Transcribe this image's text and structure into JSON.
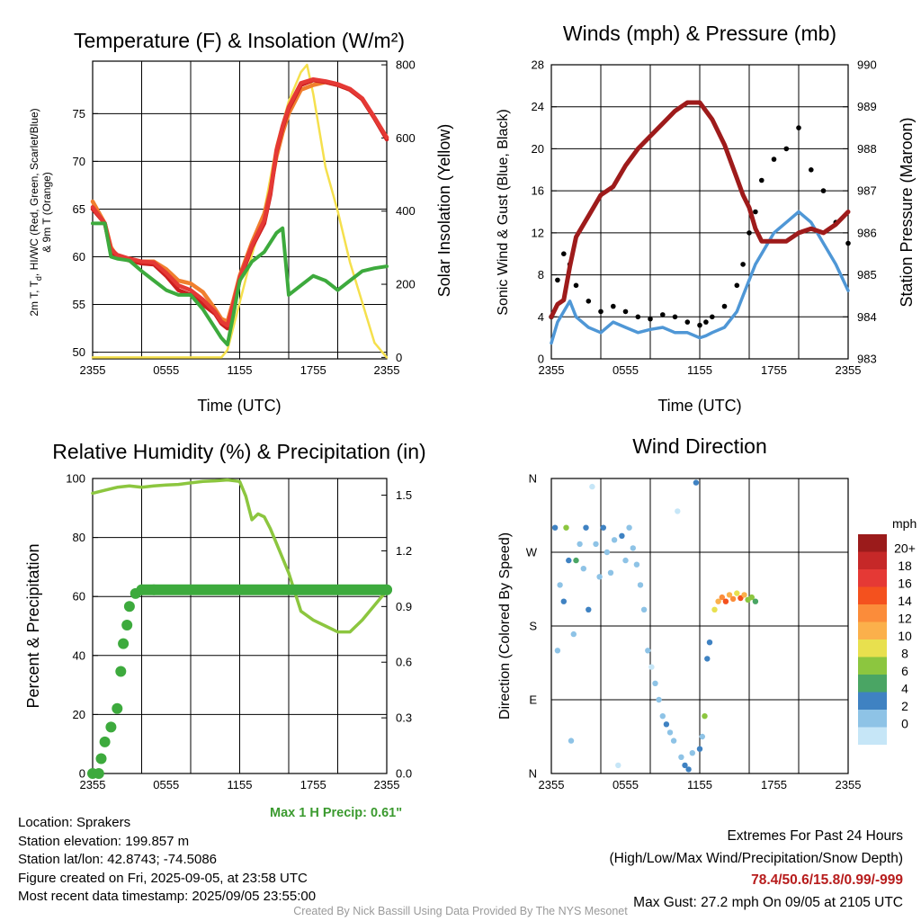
{
  "chart_data": [
    {
      "type": "line",
      "title": "Temperature (F) & Insolation (W/m²)",
      "xlabel": "Time (UTC)",
      "ylabel": "2m T, Td, HI/WC (Red, Green, Scarlet/Blue) & 9m T (Orange)",
      "ylabel_line1": "2m T, T",
      "ylabel_sub": "d",
      "ylabel_line1b": ", HI/WC (Red, Green, Scarlet/Blue)",
      "ylabel_line2": "& 9m T (Orange)",
      "y2label": "Solar Insolation (Yellow)",
      "x_ticks": [
        "2355",
        "0555",
        "1155",
        "1755",
        "2355"
      ],
      "ylim": [
        49.3,
        80.5
      ],
      "y_ticks": [
        50,
        55,
        60,
        65,
        70,
        75
      ],
      "y2lim": [
        -4,
        810
      ],
      "y2_ticks": [
        0,
        200,
        400,
        600,
        800
      ],
      "x": [
        0,
        1,
        1.5,
        2,
        3,
        4,
        5,
        6,
        7,
        8,
        9,
        10,
        10.5,
        11,
        11.5,
        12,
        13,
        14,
        14.5,
        15,
        15.5,
        16,
        17,
        18,
        19,
        20,
        21,
        22,
        23,
        24
      ],
      "series": [
        {
          "role": "9m T",
          "color": "#f07f2e",
          "values": [
            65.8,
            63.5,
            61,
            60,
            59.8,
            59.5,
            59.5,
            58.7,
            57.5,
            57.2,
            56.3,
            54.5,
            53.5,
            53.2,
            55.5,
            58,
            61.5,
            64.5,
            67,
            70.5,
            73,
            75,
            77.5,
            78,
            78.3,
            78,
            77.5,
            76.5,
            74.5,
            72.5
          ]
        },
        {
          "role": "2m T",
          "color": "#cc1f1f",
          "values": [
            65,
            63.5,
            60.5,
            60,
            59.6,
            59.3,
            59.2,
            58,
            56.5,
            56,
            55,
            54,
            53,
            52.5,
            55,
            57.5,
            61,
            63.5,
            66.5,
            71,
            73.5,
            75.5,
            78,
            78.5,
            78.3,
            78,
            77.5,
            76.5,
            74.5,
            72.3
          ]
        },
        {
          "role": "HI/WC",
          "color": "#e53935",
          "values": [
            65.2,
            63.5,
            60.8,
            60.2,
            59.8,
            59.5,
            59.4,
            58.3,
            57,
            56.5,
            55.5,
            54.2,
            53.2,
            52.8,
            55.2,
            57.8,
            61.2,
            63.8,
            66.8,
            71.2,
            73.7,
            75.7,
            78.2,
            78.6,
            78.4,
            78.1,
            77.6,
            76.6,
            74.6,
            72.5
          ]
        },
        {
          "role": "2m Td",
          "color": "#3daa3d",
          "values": [
            63.5,
            63.5,
            60,
            59.8,
            59.6,
            58.5,
            57.5,
            56.5,
            56,
            56,
            54.5,
            52.5,
            51.5,
            50.8,
            54,
            57.5,
            59.5,
            60.5,
            61.5,
            62.5,
            63,
            56,
            57,
            58,
            57.5,
            56.5,
            57.5,
            58.5,
            58.8,
            59
          ]
        },
        {
          "role": "Solar Insolation",
          "color": "#f5e04d",
          "axis": "right",
          "x": [
            0,
            6,
            10.5,
            11,
            12,
            13,
            14,
            15,
            16,
            17,
            17.5,
            18,
            19,
            20,
            21,
            22,
            23,
            24
          ],
          "values": [
            0,
            0,
            0,
            20,
            150,
            280,
            400,
            580,
            700,
            780,
            800,
            720,
            520,
            400,
            260,
            150,
            40,
            0
          ]
        }
      ]
    },
    {
      "type": "line",
      "title": "Winds (mph) & Pressure (mb)",
      "xlabel": "Time (UTC)",
      "ylabel": "Sonic Wind & Gust (Blue, Black)",
      "y2label": "Station Pressure (Maroon)",
      "x_ticks": [
        "2355",
        "0555",
        "1155",
        "1755",
        "2355"
      ],
      "ylim": [
        0,
        28
      ],
      "y_ticks": [
        0,
        4,
        8,
        12,
        16,
        20,
        24,
        28
      ],
      "y2lim": [
        983,
        990
      ],
      "y2_ticks": [
        983,
        984,
        985,
        986,
        987,
        988,
        989,
        990
      ],
      "x": [
        0,
        0.5,
        1,
        1.5,
        2,
        3,
        4,
        5,
        6,
        7,
        8,
        9,
        10,
        11,
        12,
        12.5,
        13,
        14,
        15,
        15.5,
        16,
        16.5,
        17,
        18,
        19,
        20,
        21,
        22,
        23,
        24
      ],
      "series": [
        {
          "role": "Sonic Wind",
          "color": "#4f97d6",
          "values": [
            1.5,
            3.5,
            4.5,
            5.5,
            4,
            3,
            2.5,
            3.5,
            3,
            2.5,
            2.8,
            3,
            2.5,
            2.5,
            2,
            2.2,
            2.5,
            3,
            4.5,
            6,
            7.5,
            9,
            10,
            12,
            13,
            14,
            13,
            11,
            9,
            6.5
          ]
        },
        {
          "role": "Sonic Gust",
          "color": "#000000",
          "values": [
            4,
            7.5,
            10,
            9,
            7,
            5.5,
            4.5,
            5,
            4.5,
            4,
            3.8,
            4.2,
            4,
            3.5,
            3.2,
            3.5,
            4,
            5,
            7,
            9,
            12,
            14,
            17,
            19,
            20,
            22,
            18,
            16,
            13,
            11
          ]
        },
        {
          "role": "Station Pressure",
          "color": "#9e1b1b",
          "axis": "right",
          "values": [
            984,
            984.3,
            984.4,
            985.2,
            985.9,
            986.4,
            986.9,
            987.1,
            987.6,
            988,
            988.3,
            988.6,
            988.9,
            989.1,
            989.1,
            988.9,
            988.7,
            988.1,
            987.3,
            986.9,
            986.6,
            986.1,
            985.8,
            985.8,
            985.8,
            986,
            986.1,
            986.0,
            986.2,
            986.5
          ]
        }
      ]
    },
    {
      "type": "line",
      "title": "Relative Humidity (%) & Precipitation (in)",
      "ylabel": "Percent & Precipitation",
      "x_ticks": [
        "2355",
        "0555",
        "1155",
        "1755",
        "2355"
      ],
      "ylim": [
        0,
        100
      ],
      "y_ticks": [
        0,
        20,
        40,
        60,
        80,
        100
      ],
      "y2lim": [
        0,
        1.59
      ],
      "y2_ticks": [
        "0.0",
        "0.3",
        "0.6",
        "0.9",
        "1.2",
        "1.5"
      ],
      "x": [
        0,
        1,
        2,
        3,
        4,
        5,
        6,
        7,
        8,
        9,
        10,
        11,
        12,
        12.5,
        13,
        13.5,
        14,
        14.5,
        15,
        16,
        17,
        18,
        19,
        20,
        21,
        22,
        23,
        24
      ],
      "series": [
        {
          "role": "Relative Humidity",
          "color": "#8cc63f",
          "values": [
            95,
            96,
            97,
            97.5,
            97,
            97.5,
            97.8,
            98,
            98.5,
            99,
            99.2,
            99.5,
            99,
            94,
            86,
            88,
            87,
            83,
            78,
            68,
            55,
            52,
            50,
            48,
            48,
            52,
            57,
            62
          ]
        },
        {
          "role": "Precipitation",
          "color": "#3daa3d",
          "axis": "right",
          "x": [
            0,
            0.5,
            0.7,
            1,
            1.5,
            2,
            2.3,
            2.5,
            2.8,
            3,
            3.5,
            4,
            5,
            24
          ],
          "values": [
            0,
            0,
            0.08,
            0.17,
            0.25,
            0.35,
            0.55,
            0.7,
            0.8,
            0.9,
            0.97,
            0.99,
            0.99,
            0.99
          ]
        }
      ]
    },
    {
      "type": "scatter",
      "title": "Wind Direction",
      "ylabel": "Direction (Colored By Speed)",
      "x_ticks": [
        "2355",
        "0555",
        "1155",
        "1755",
        "2355"
      ],
      "y_ticks": [
        "N",
        "E",
        "S",
        "W",
        "N"
      ],
      "ylim": [
        0,
        360
      ],
      "colorbar_title": "mph",
      "colorbar_labels": [
        "20+",
        "18",
        "16",
        "14",
        "12",
        "10",
        "8",
        "6",
        "4",
        "2",
        "0"
      ],
      "colorbar_colors": [
        "#9b1b1b",
        "#c62828",
        "#e53935",
        "#f4511e",
        "#fb8c3a",
        "#fbb04b",
        "#e8e04e",
        "#8cc63f",
        "#4aa564",
        "#3f82c2",
        "#8ec3e6",
        "#c6e6f7"
      ],
      "points": [
        {
          "x": 0.3,
          "dir": 300,
          "speed": 4
        },
        {
          "x": 0.5,
          "dir": 150,
          "speed": 3
        },
        {
          "x": 0.7,
          "dir": 230,
          "speed": 2
        },
        {
          "x": 1.0,
          "dir": 210,
          "speed": 4
        },
        {
          "x": 1.2,
          "dir": 300,
          "speed": 9
        },
        {
          "x": 1.4,
          "dir": 260,
          "speed": 5
        },
        {
          "x": 1.6,
          "dir": 40,
          "speed": 3
        },
        {
          "x": 1.8,
          "dir": 170,
          "speed": 2
        },
        {
          "x": 2.0,
          "dir": 260,
          "speed": 7
        },
        {
          "x": 2.3,
          "dir": 280,
          "speed": 3
        },
        {
          "x": 2.6,
          "dir": 250,
          "speed": 2
        },
        {
          "x": 2.8,
          "dir": 300,
          "speed": 5
        },
        {
          "x": 3.0,
          "dir": 200,
          "speed": 4
        },
        {
          "x": 3.3,
          "dir": 350,
          "speed": 1
        },
        {
          "x": 3.6,
          "dir": 280,
          "speed": 2
        },
        {
          "x": 3.9,
          "dir": 240,
          "speed": 3
        },
        {
          "x": 4.2,
          "dir": 300,
          "speed": 4
        },
        {
          "x": 4.5,
          "dir": 270,
          "speed": 3
        },
        {
          "x": 4.8,
          "dir": 245,
          "speed": 2
        },
        {
          "x": 5.1,
          "dir": 285,
          "speed": 3
        },
        {
          "x": 5.4,
          "dir": 10,
          "speed": 1
        },
        {
          "x": 5.7,
          "dir": 290,
          "speed": 4
        },
        {
          "x": 6.0,
          "dir": 260,
          "speed": 3
        },
        {
          "x": 6.3,
          "dir": 300,
          "speed": 2
        },
        {
          "x": 6.6,
          "dir": 275,
          "speed": 3
        },
        {
          "x": 6.9,
          "dir": 255,
          "speed": 2
        },
        {
          "x": 7.2,
          "dir": 230,
          "speed": 3
        },
        {
          "x": 7.5,
          "dir": 200,
          "speed": 2
        },
        {
          "x": 7.8,
          "dir": 150,
          "speed": 3
        },
        {
          "x": 8.1,
          "dir": 130,
          "speed": 1
        },
        {
          "x": 8.4,
          "dir": 110,
          "speed": 2
        },
        {
          "x": 8.7,
          "dir": 90,
          "speed": 3
        },
        {
          "x": 9.0,
          "dir": 70,
          "speed": 2
        },
        {
          "x": 9.3,
          "dir": 60,
          "speed": 4
        },
        {
          "x": 9.6,
          "dir": 50,
          "speed": 3
        },
        {
          "x": 9.9,
          "dir": 40,
          "speed": 2
        },
        {
          "x": 10.2,
          "dir": 320,
          "speed": 1
        },
        {
          "x": 10.5,
          "dir": 20,
          "speed": 3
        },
        {
          "x": 10.8,
          "dir": 10,
          "speed": 4
        },
        {
          "x": 11.1,
          "dir": 5,
          "speed": 4
        },
        {
          "x": 11.4,
          "dir": 25,
          "speed": 3
        },
        {
          "x": 11.7,
          "dir": 355,
          "speed": 4
        },
        {
          "x": 12.0,
          "dir": 30,
          "speed": 5
        },
        {
          "x": 12.2,
          "dir": 45,
          "speed": 3
        },
        {
          "x": 12.4,
          "dir": 70,
          "speed": 8
        },
        {
          "x": 12.6,
          "dir": 140,
          "speed": 4
        },
        {
          "x": 12.8,
          "dir": 160,
          "speed": 5
        },
        {
          "x": 13.2,
          "dir": 200,
          "speed": 10
        },
        {
          "x": 13.5,
          "dir": 210,
          "speed": 12
        },
        {
          "x": 13.8,
          "dir": 215,
          "speed": 14
        },
        {
          "x": 14.1,
          "dir": 210,
          "speed": 16
        },
        {
          "x": 14.4,
          "dir": 218,
          "speed": 12
        },
        {
          "x": 14.7,
          "dir": 213,
          "speed": 15
        },
        {
          "x": 15.0,
          "dir": 220,
          "speed": 11
        },
        {
          "x": 15.3,
          "dir": 214,
          "speed": 17
        },
        {
          "x": 15.6,
          "dir": 218,
          "speed": 13
        },
        {
          "x": 15.9,
          "dir": 212,
          "speed": 9
        },
        {
          "x": 16.2,
          "dir": 215,
          "speed": 8
        },
        {
          "x": 16.5,
          "dir": 210,
          "speed": 6
        }
      ]
    }
  ],
  "info": {
    "location": "Location: Sprakers",
    "elevation": "Station elevation: 199.857 m",
    "latlon": "Station lat/lon: 42.8743; -74.5086",
    "created": "Figure created on Fri, 2025-09-05, at 23:58 UTC",
    "recent": "Most recent data timestamp: 2025/09/05 23:55:00"
  },
  "precip_note": "Max 1 H Precip: 0.61\"",
  "extremes": {
    "title": "Extremes For Past 24 Hours",
    "subtitle": "(High/Low/Max Wind/Precipitation/Snow Depth)",
    "values": "78.4/50.6/15.8/0.99/-999",
    "gust": "Max Gust: 27.2 mph On 09/05 at 2105 UTC"
  },
  "credit": "Created By Nick Bassill Using Data Provided By The NYS Mesonet"
}
